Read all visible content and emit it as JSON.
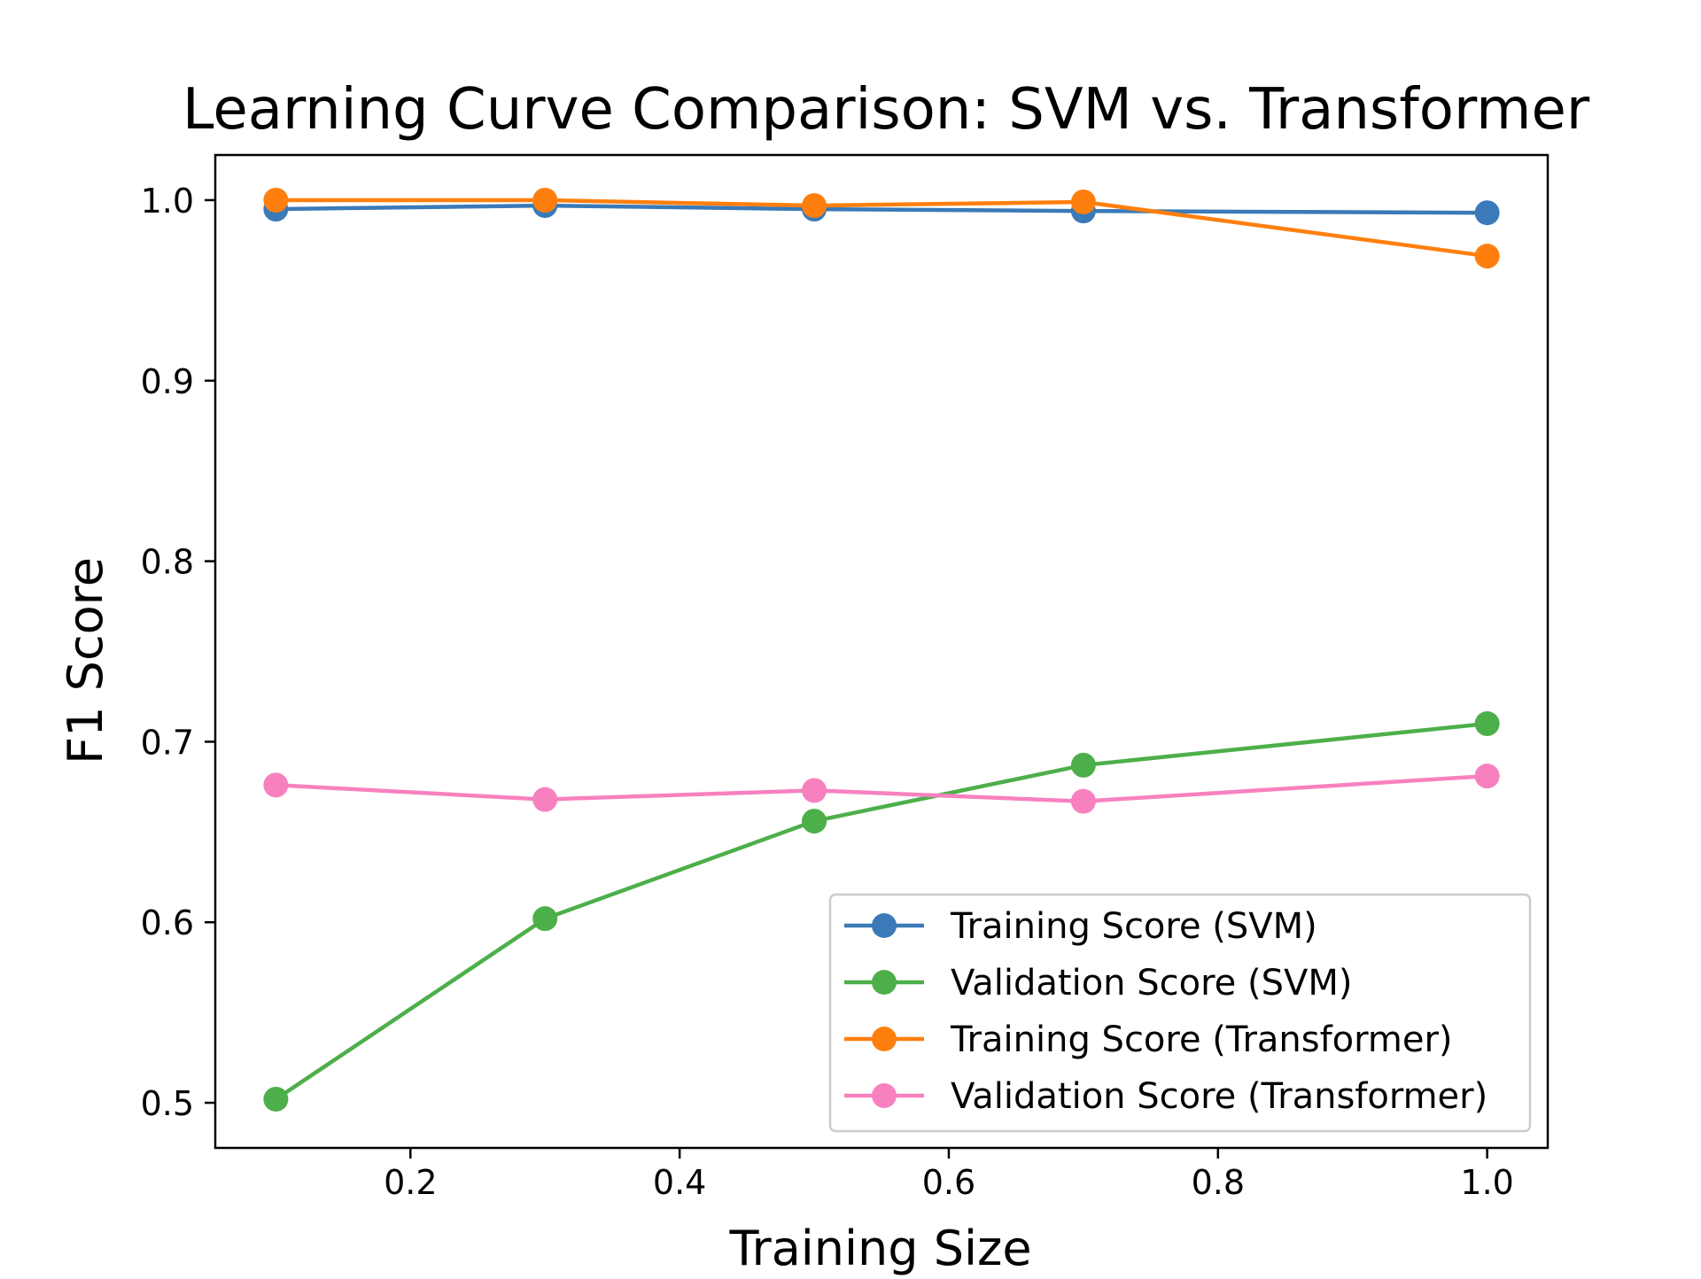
{
  "chart_data": {
    "type": "line",
    "title": "Learning Curve Comparison: SVM vs. Transformer",
    "xlabel": "Training Size",
    "ylabel": "F1 Score",
    "x": [
      0.1,
      0.3,
      0.5,
      0.7,
      1.0
    ],
    "xlim": [
      0.055,
      1.045
    ],
    "ylim": [
      0.475,
      1.025
    ],
    "xticks": [
      0.2,
      0.4,
      0.6,
      0.8,
      1.0
    ],
    "xtick_labels": [
      "0.2",
      "0.4",
      "0.6",
      "0.8",
      "1.0"
    ],
    "yticks": [
      0.5,
      0.6,
      0.7,
      0.8,
      0.9,
      1.0
    ],
    "ytick_labels": [
      "0.5",
      "0.6",
      "0.7",
      "0.8",
      "0.9",
      "1.0"
    ],
    "grid": false,
    "legend_position": "lower-right",
    "series": [
      {
        "name": "Training Score (SVM)",
        "color": "#3a7ab8",
        "values": [
          0.995,
          0.997,
          0.995,
          0.994,
          0.993
        ]
      },
      {
        "name": "Validation Score (SVM)",
        "color": "#4daf4a",
        "values": [
          0.502,
          0.602,
          0.656,
          0.687,
          0.71
        ]
      },
      {
        "name": "Training Score (Transformer)",
        "color": "#ff7f0e",
        "values": [
          1.0,
          1.0,
          0.997,
          0.999,
          0.969
        ]
      },
      {
        "name": "Validation Score (Transformer)",
        "color": "#f781bf",
        "values": [
          0.676,
          0.668,
          0.673,
          0.667,
          0.681
        ]
      }
    ]
  }
}
